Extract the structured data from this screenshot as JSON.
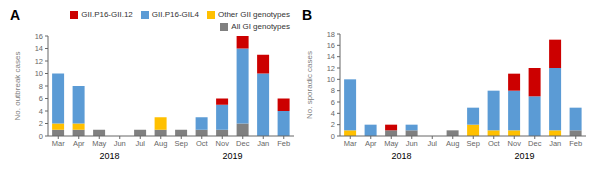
{
  "chart_data": [
    {
      "type": "bar",
      "title": "A",
      "ylabel": "No. outbreak cases",
      "stacked": true,
      "grid": false,
      "legend": "top",
      "categories": [
        "Mar",
        "Apr",
        "May",
        "Jun",
        "Jul",
        "Aug",
        "Sep",
        "Oct",
        "Nov",
        "Dec",
        "Jan",
        "Feb"
      ],
      "series": [
        {
          "name": "All GI genotypes",
          "color": "#808080",
          "values": [
            1,
            1,
            1,
            0,
            1,
            1,
            1,
            1,
            1,
            2,
            0,
            0
          ]
        },
        {
          "name": "Other GII genotypes",
          "color": "#ffc000",
          "values": [
            1,
            1,
            0,
            0,
            0,
            2,
            0,
            0,
            0,
            0,
            0,
            0
          ]
        },
        {
          "name": "GII.P16-GIL4",
          "color": "#5b9bd5",
          "values": [
            8,
            6,
            0,
            0,
            0,
            0,
            0,
            2,
            4,
            12,
            10,
            4
          ]
        },
        {
          "name": "GII.P16-GII.12",
          "color": "#cc0000",
          "values": [
            0,
            0,
            0,
            0,
            0,
            0,
            0,
            0,
            1,
            2,
            3,
            2
          ]
        }
      ],
      "ylim": [
        0,
        16
      ],
      "yticks": [
        0,
        2,
        4,
        6,
        8,
        10,
        12,
        14,
        16
      ],
      "annotations": [
        {
          "text": "2018"
        },
        {
          "text": "2019"
        }
      ]
    },
    {
      "type": "bar",
      "title": "B",
      "ylabel": "No. sporadic cases",
      "stacked": true,
      "grid": false,
      "categories": [
        "Mar",
        "Apr",
        "May",
        "Jun",
        "Jul",
        "Aug",
        "Sep",
        "Oct",
        "Nov",
        "Dec",
        "Jan",
        "Feb"
      ],
      "series": [
        {
          "name": "All GI genotypes",
          "color": "#808080",
          "values": [
            0,
            0,
            1,
            1,
            0,
            1,
            0,
            0,
            0,
            0,
            0,
            1
          ]
        },
        {
          "name": "Other GII genotypes",
          "color": "#ffc000",
          "values": [
            1,
            0,
            0,
            0,
            0,
            0,
            2,
            1,
            1,
            0,
            1,
            0
          ]
        },
        {
          "name": "GII.P16-GIL4",
          "color": "#5b9bd5",
          "values": [
            9,
            2,
            0,
            1,
            0,
            0,
            3,
            7,
            7,
            7,
            11,
            4
          ]
        },
        {
          "name": "GII.P16-GII.12",
          "color": "#cc0000",
          "values": [
            0,
            0,
            1,
            0,
            0,
            0,
            0,
            0,
            3,
            5,
            5,
            0
          ]
        }
      ],
      "ylim": [
        0,
        18
      ],
      "yticks": [
        0,
        2,
        4,
        6,
        8,
        10,
        12,
        14,
        16,
        18
      ],
      "annotations": [
        {
          "text": "2018"
        },
        {
          "text": "2019"
        }
      ]
    }
  ]
}
